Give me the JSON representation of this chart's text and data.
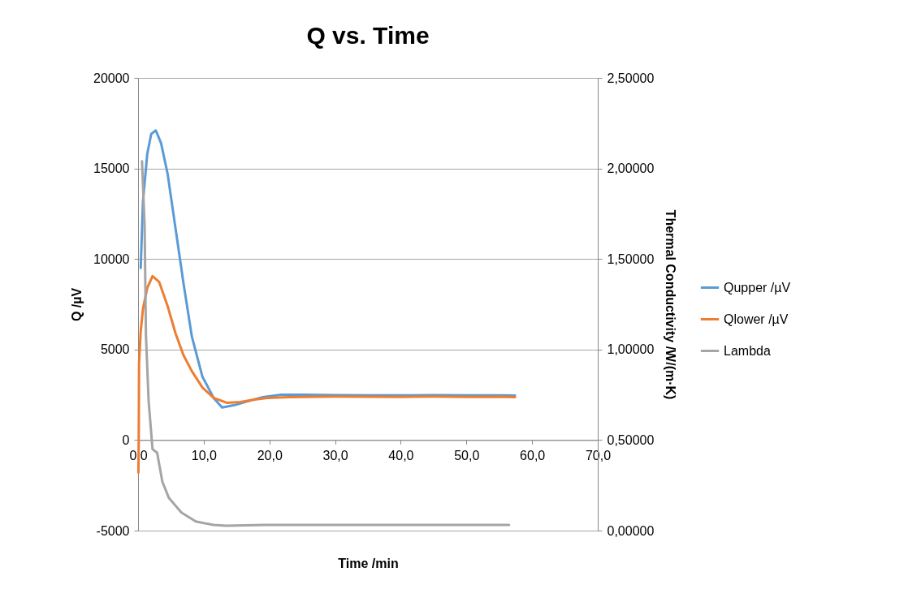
{
  "chart_data": {
    "type": "line",
    "title": "Q vs. Time",
    "xlabel": "Time /min",
    "ylabel": "Q /µV",
    "y2label": "Thermal Conductivity /W/(m·K)",
    "xlim": [
      0,
      70
    ],
    "xticks": [
      {
        "value": 0,
        "label": "0,0"
      },
      {
        "value": 10,
        "label": "10,0"
      },
      {
        "value": 20,
        "label": "20,0"
      },
      {
        "value": 30,
        "label": "30,0"
      },
      {
        "value": 40,
        "label": "40,0"
      },
      {
        "value": 50,
        "label": "50,0"
      },
      {
        "value": 60,
        "label": "60,0"
      },
      {
        "value": 70,
        "label": "70,0"
      }
    ],
    "ylim": [
      -5000,
      20000
    ],
    "yticks": [
      -5000,
      0,
      5000,
      10000,
      15000,
      20000
    ],
    "y2lim": [
      0,
      2.5
    ],
    "y2ticks": [
      {
        "value": 0,
        "label": "0,00000"
      },
      {
        "value": 0.5,
        "label": "0,50000"
      },
      {
        "value": 1,
        "label": "1,00000"
      },
      {
        "value": 1.5,
        "label": "1,50000"
      },
      {
        "value": 2,
        "label": "2,00000"
      },
      {
        "value": 2.5,
        "label": "2,50000"
      }
    ],
    "grid": "y",
    "legend": "right",
    "line_style": "solid",
    "series": [
      {
        "name": "Qupper /µV",
        "color": "#5b9bd5",
        "x": [
          0.4,
          0.75,
          1.4,
          2.0,
          2.7,
          3.5,
          4.5,
          5.7,
          6.9,
          8.2,
          9.8,
          11.5,
          12.8,
          14.7,
          16.8,
          19,
          21.8,
          25,
          30,
          35,
          40,
          45,
          50,
          55,
          57.4
        ],
        "values": [
          9500,
          13200,
          15800,
          16900,
          17100,
          16400,
          14700,
          11700,
          8700,
          5700,
          3500,
          2330,
          1800,
          1930,
          2150,
          2370,
          2500,
          2500,
          2480,
          2470,
          2470,
          2480,
          2470,
          2470,
          2460
        ]
      },
      {
        "name": "Qlower /µV",
        "color": "#ed7d31",
        "x": [
          0.05,
          0.1,
          0.15,
          0.4,
          0.75,
          1.4,
          2.2,
          3.2,
          4.5,
          5.7,
          6.9,
          8.2,
          9.8,
          11.5,
          13.5,
          15.6,
          17.7,
          19.7,
          23,
          30,
          35,
          40,
          45,
          50,
          55,
          57.4
        ],
        "values": [
          -1800,
          0,
          4260,
          6000,
          7260,
          8400,
          9050,
          8740,
          7400,
          5900,
          4700,
          3800,
          2900,
          2330,
          2060,
          2100,
          2240,
          2330,
          2370,
          2400,
          2390,
          2380,
          2400,
          2380,
          2390,
          2370
        ]
      },
      {
        "name": "Lambda",
        "color": "#a5a5a5",
        "axis": "y2",
        "x": [
          0.6,
          1.0,
          1.2,
          1.6,
          2.2,
          2.9,
          3.7,
          4.7,
          6.6,
          8.8,
          11.5,
          13.4,
          19.3,
          30,
          40,
          50,
          56.5
        ],
        "values": [
          2.04,
          1.68,
          1.08,
          0.72,
          0.45,
          0.43,
          0.27,
          0.18,
          0.1,
          0.05,
          0.031,
          0.027,
          0.031,
          0.031,
          0.031,
          0.031,
          0.031
        ]
      }
    ]
  }
}
